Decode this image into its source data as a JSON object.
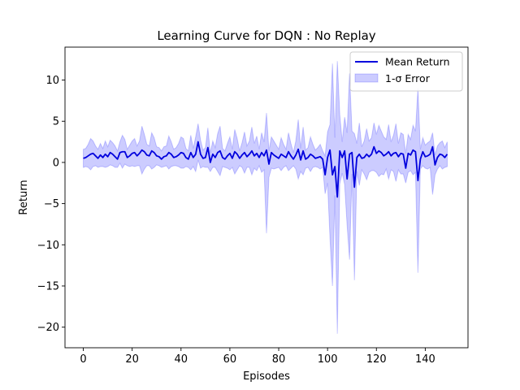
{
  "chart_data": {
    "type": "line",
    "title": "Learning Curve for DQN : No Replay",
    "xlabel": "Episodes",
    "ylabel": "Return",
    "xlim": [
      -7.5,
      157.5
    ],
    "ylim": [
      -22.5,
      14
    ],
    "xticks": [
      0,
      20,
      40,
      60,
      80,
      100,
      120,
      140
    ],
    "yticks": [
      -20,
      -15,
      -10,
      -5,
      0,
      5,
      10
    ],
    "ytick_labels": [
      "−20",
      "−15",
      "−10",
      "−5",
      "0",
      "5",
      "10"
    ],
    "legend_position": "top-right",
    "grid": false,
    "series": [
      {
        "name": "Mean Return",
        "kind": "line",
        "color": "#0000dd",
        "x": [
          0,
          1,
          2,
          3,
          4,
          5,
          6,
          7,
          8,
          9,
          10,
          11,
          12,
          13,
          14,
          15,
          16,
          17,
          18,
          19,
          20,
          21,
          22,
          23,
          24,
          25,
          26,
          27,
          28,
          29,
          30,
          31,
          32,
          33,
          34,
          35,
          36,
          37,
          38,
          39,
          40,
          41,
          42,
          43,
          44,
          45,
          46,
          47,
          48,
          49,
          50,
          51,
          52,
          53,
          54,
          55,
          56,
          57,
          58,
          59,
          60,
          61,
          62,
          63,
          64,
          65,
          66,
          67,
          68,
          69,
          70,
          71,
          72,
          73,
          74,
          75,
          76,
          77,
          78,
          79,
          80,
          81,
          82,
          83,
          84,
          85,
          86,
          87,
          88,
          89,
          90,
          91,
          92,
          93,
          94,
          95,
          96,
          97,
          98,
          99,
          100,
          101,
          102,
          103,
          104,
          105,
          106,
          107,
          108,
          109,
          110,
          111,
          112,
          113,
          114,
          115,
          116,
          117,
          118,
          119,
          120,
          121,
          122,
          123,
          124,
          125,
          126,
          127,
          128,
          129,
          130,
          131,
          132,
          133,
          134,
          135,
          136,
          137,
          138,
          139,
          140,
          141,
          142,
          143,
          144,
          145,
          146,
          147,
          148,
          149
        ],
        "y": [
          0.5,
          0.6,
          0.8,
          1.0,
          1.1,
          0.8,
          0.5,
          0.9,
          0.6,
          1.0,
          0.7,
          1.2,
          1.0,
          0.7,
          0.4,
          1.2,
          1.3,
          1.3,
          0.6,
          0.8,
          1.1,
          1.2,
          0.8,
          1.1,
          1.5,
          1.3,
          0.9,
          0.8,
          1.4,
          1.2,
          0.8,
          0.7,
          0.4,
          0.7,
          0.8,
          1.2,
          1.0,
          0.6,
          0.7,
          0.9,
          1.2,
          1.1,
          0.6,
          0.4,
          1.2,
          0.6,
          1.0,
          2.5,
          1.0,
          0.5,
          0.6,
          1.8,
          0.0,
          1.0,
          0.6,
          1.2,
          1.4,
          0.6,
          0.4,
          0.8,
          1.1,
          0.5,
          1.3,
          1.0,
          0.5,
          0.9,
          1.2,
          0.7,
          1.0,
          1.4,
          0.8,
          1.1,
          0.6,
          1.2,
          0.8,
          1.5,
          -0.2,
          1.2,
          0.9,
          0.7,
          0.5,
          1.0,
          0.8,
          0.6,
          1.3,
          0.8,
          0.4,
          0.9,
          1.6,
          0.3,
          1.4,
          0.4,
          0.6,
          1.0,
          0.8,
          0.5,
          0.6,
          0.7,
          0.4,
          -1.5,
          0.6,
          1.5,
          -1.5,
          -0.5,
          -4.2,
          1.4,
          0.6,
          1.4,
          -2.0,
          1.0,
          1.2,
          -3.0,
          0.6,
          1.0,
          0.5,
          0.6,
          1.0,
          0.7,
          1.0,
          1.9,
          1.1,
          1.4,
          1.2,
          0.8,
          1.0,
          1.3,
          0.8,
          1.1,
          1.2,
          0.7,
          1.1,
          1.0,
          -0.7,
          1.1,
          0.9,
          1.5,
          1.3,
          -2.2,
          0.4,
          1.3,
          0.7,
          0.8,
          1.0,
          1.9,
          -0.3,
          0.6,
          1.0,
          0.9,
          0.6,
          1.0
        ]
      },
      {
        "name": "1-σ Error",
        "kind": "band",
        "color": "#0000ff",
        "opacity": 0.2,
        "x": [
          0,
          1,
          2,
          3,
          4,
          5,
          6,
          7,
          8,
          9,
          10,
          11,
          12,
          13,
          14,
          15,
          16,
          17,
          18,
          19,
          20,
          21,
          22,
          23,
          24,
          25,
          26,
          27,
          28,
          29,
          30,
          31,
          32,
          33,
          34,
          35,
          36,
          37,
          38,
          39,
          40,
          41,
          42,
          43,
          44,
          45,
          46,
          47,
          48,
          49,
          50,
          51,
          52,
          53,
          54,
          55,
          56,
          57,
          58,
          59,
          60,
          61,
          62,
          63,
          64,
          65,
          66,
          67,
          68,
          69,
          70,
          71,
          72,
          73,
          74,
          75,
          76,
          77,
          78,
          79,
          80,
          81,
          82,
          83,
          84,
          85,
          86,
          87,
          88,
          89,
          90,
          91,
          92,
          93,
          94,
          95,
          96,
          97,
          98,
          99,
          100,
          101,
          102,
          103,
          104,
          105,
          106,
          107,
          108,
          109,
          110,
          111,
          112,
          113,
          114,
          115,
          116,
          117,
          118,
          119,
          120,
          121,
          122,
          123,
          124,
          125,
          126,
          127,
          128,
          129,
          130,
          131,
          132,
          133,
          134,
          135,
          136,
          137,
          138,
          139,
          140,
          141,
          142,
          143,
          144,
          145,
          146,
          147,
          148,
          149
        ],
        "upper": [
          1.6,
          1.7,
          2.2,
          2.9,
          2.6,
          2.0,
          1.6,
          2.3,
          1.7,
          2.6,
          1.9,
          2.7,
          2.4,
          2.0,
          1.4,
          2.5,
          3.3,
          2.8,
          1.6,
          2.1,
          2.6,
          2.9,
          2.0,
          2.6,
          4.4,
          3.4,
          2.2,
          2.0,
          3.6,
          3.0,
          1.9,
          1.8,
          1.4,
          1.9,
          2.0,
          3.2,
          2.5,
          1.6,
          1.8,
          2.3,
          3.1,
          2.9,
          1.7,
          1.4,
          3.3,
          1.7,
          3.1,
          4.7,
          2.7,
          1.5,
          1.8,
          4.2,
          1.1,
          2.6,
          1.8,
          3.5,
          4.4,
          1.7,
          1.4,
          2.3,
          3.1,
          1.6,
          4.0,
          2.9,
          1.4,
          2.4,
          3.7,
          2.0,
          2.6,
          4.3,
          2.3,
          3.2,
          1.6,
          3.6,
          2.5,
          6.0,
          1.4,
          3.1,
          2.6,
          2.1,
          1.6,
          3.0,
          2.2,
          1.6,
          3.6,
          2.3,
          1.2,
          2.6,
          5.2,
          1.7,
          4.3,
          1.5,
          1.8,
          3.1,
          2.2,
          1.5,
          1.8,
          2.2,
          1.4,
          0.8,
          3.7,
          4.6,
          12.0,
          3.0,
          12.3,
          5.8,
          2.5,
          5.5,
          3.6,
          10.8,
          3.8,
          3.5,
          2.3,
          4.8,
          1.9,
          2.6,
          4.1,
          2.6,
          3.0,
          4.8,
          3.4,
          4.5,
          3.8,
          3.1,
          2.8,
          4.6,
          2.5,
          3.3,
          4.7,
          2.3,
          3.6,
          3.4,
          1.1,
          3.4,
          2.8,
          4.5,
          3.8,
          9.0,
          1.6,
          3.0,
          2.1,
          2.4,
          2.6,
          3.6,
          0.9,
          2.0,
          2.4,
          2.6,
          1.8,
          2.5
        ],
        "lower": [
          -0.6,
          -0.5,
          -0.6,
          -0.9,
          -0.5,
          -0.4,
          -0.6,
          -0.5,
          -0.5,
          -0.6,
          -0.5,
          -0.3,
          -0.4,
          -0.6,
          -0.6,
          -0.1,
          -0.7,
          -0.2,
          -0.4,
          -0.5,
          -0.4,
          -0.5,
          -0.4,
          -0.4,
          -1.4,
          -0.8,
          -0.4,
          -0.4,
          -0.8,
          -0.6,
          -0.3,
          -0.4,
          -0.6,
          -0.5,
          -0.4,
          -0.8,
          -0.5,
          -0.4,
          -0.4,
          -0.5,
          -0.7,
          -0.7,
          -0.5,
          -0.6,
          -0.9,
          -0.5,
          -1.1,
          0.3,
          -0.7,
          -0.5,
          -0.6,
          -0.6,
          -1.1,
          -0.6,
          -0.6,
          -1.1,
          -1.6,
          -0.5,
          -0.6,
          -0.7,
          -0.9,
          -0.6,
          -1.4,
          -0.9,
          -0.4,
          -0.6,
          -1.3,
          -0.6,
          -0.6,
          -1.5,
          -0.7,
          -1.0,
          -0.4,
          -1.2,
          -0.9,
          -8.6,
          -1.8,
          -0.7,
          -0.8,
          -0.7,
          -0.6,
          -1.0,
          -0.6,
          -0.4,
          -1.0,
          -0.7,
          -0.4,
          -0.8,
          -2.0,
          -1.1,
          -1.5,
          -0.7,
          -0.6,
          -1.1,
          -0.6,
          -0.5,
          -0.6,
          -0.8,
          -0.6,
          -3.8,
          -2.5,
          -9.2,
          -15.0,
          -4.0,
          -20.8,
          -2.6,
          -1.3,
          -2.7,
          -7.6,
          -11.8,
          -1.4,
          -14.3,
          -1.1,
          -2.8,
          -0.9,
          -1.4,
          -2.1,
          -1.2,
          -1.0,
          -1.0,
          -1.2,
          -1.7,
          -1.4,
          -1.5,
          -0.8,
          -2.0,
          -0.9,
          -1.1,
          -2.3,
          -0.9,
          -1.4,
          -1.4,
          -2.5,
          -1.2,
          -1.0,
          -1.5,
          -1.2,
          -13.4,
          -0.8,
          -0.4,
          -0.7,
          -0.8,
          -0.6,
          -3.9,
          -1.5,
          -0.8,
          -0.4,
          -0.8,
          -0.6,
          -0.5
        ]
      }
    ]
  }
}
